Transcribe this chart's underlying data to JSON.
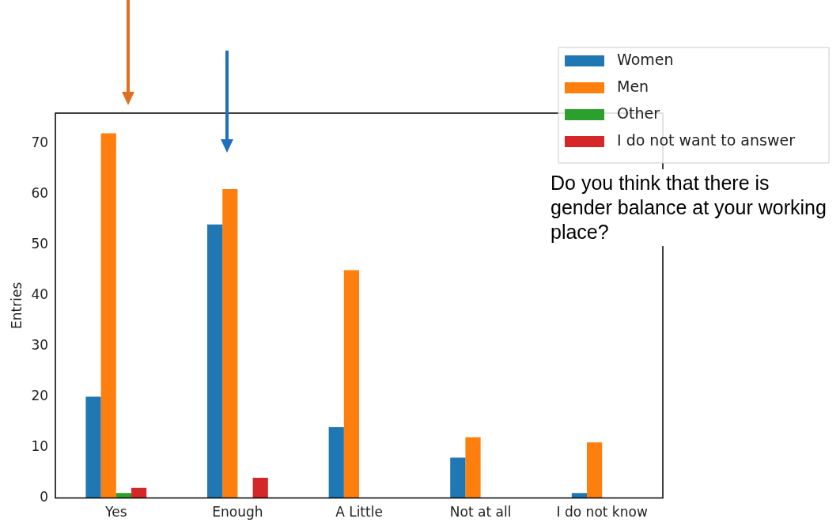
{
  "chart_data": {
    "type": "bar",
    "ylabel": "Entries",
    "categories": [
      "Yes",
      "Enough",
      "A Little",
      "Not at all",
      "I do not know"
    ],
    "series": [
      {
        "name": "Women",
        "color": "#1f77b4",
        "values": [
          20,
          54,
          14,
          8,
          1
        ]
      },
      {
        "name": "Men",
        "color": "#ff7f0e",
        "values": [
          72,
          61,
          45,
          12,
          11
        ]
      },
      {
        "name": "Other",
        "color": "#2ca02c",
        "values": [
          1,
          0,
          0,
          0,
          0
        ]
      },
      {
        "name": "I do not want to answer",
        "color": "#d62728",
        "values": [
          2,
          4,
          0,
          0,
          0
        ]
      }
    ],
    "ylim": [
      0,
      76
    ],
    "yticks": [
      0,
      10,
      20,
      30,
      40,
      50,
      60,
      70
    ],
    "grid": false,
    "legend": "top right",
    "annotations": [
      "Do you think that there is gender balance at your working place?"
    ]
  }
}
